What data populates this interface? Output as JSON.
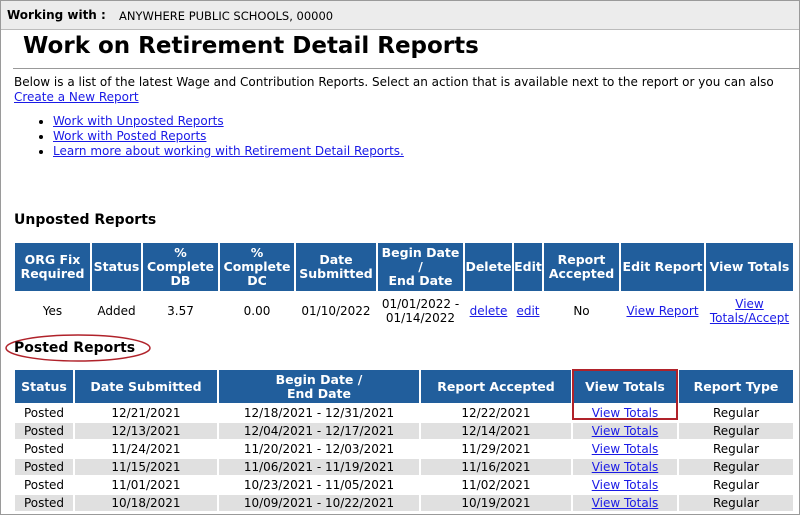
{
  "header": {
    "label": "Working with :",
    "org": "ANYWHERE PUBLIC SCHOOLS, 00000"
  },
  "title": "Work on Retirement Detail Reports",
  "intro": {
    "text": "Below is a list of the latest Wage and Contribution Reports. Select an action that is available next to the report or you can also",
    "link": "Create a New Report"
  },
  "links": [
    "Work with Unposted Reports",
    "Work with Posted Reports",
    "Learn more about working with Retirement Detail Reports."
  ],
  "unposted": {
    "heading": "Unposted Reports",
    "columns": [
      "ORG Fix\nRequired",
      "Status",
      "%\nComplete\nDB",
      "%\nComplete\nDC",
      "Date\nSubmitted",
      "Begin Date\n/\nEnd Date",
      "Delete",
      "Edit",
      "Report\nAccepted",
      "Edit Report",
      "View Totals"
    ],
    "rows": [
      [
        "Yes",
        "Added",
        "3.57",
        "0.00",
        "01/10/2022",
        "01/01/2022 -\n01/14/2022",
        "delete",
        "edit",
        "No",
        "View Report",
        "View\nTotals/Accept"
      ]
    ]
  },
  "posted": {
    "heading": "Posted Reports",
    "columns": [
      "Status",
      "Date Submitted",
      "Begin Date /\nEnd Date",
      "Report Accepted",
      "View Totals",
      "Report Type"
    ],
    "rows": [
      [
        "Posted",
        "12/21/2021",
        "12/18/2021 - 12/31/2021",
        "12/22/2021",
        "View Totals",
        "Regular"
      ],
      [
        "Posted",
        "12/13/2021",
        "12/04/2021 - 12/17/2021",
        "12/14/2021",
        "View Totals",
        "Regular"
      ],
      [
        "Posted",
        "11/24/2021",
        "11/20/2021 - 12/03/2021",
        "11/29/2021",
        "View Totals",
        "Regular"
      ],
      [
        "Posted",
        "11/15/2021",
        "11/06/2021 - 11/19/2021",
        "11/16/2021",
        "View Totals",
        "Regular"
      ],
      [
        "Posted",
        "11/01/2021",
        "10/23/2021 - 11/05/2021",
        "11/02/2021",
        "View Totals",
        "Regular"
      ],
      [
        "Posted",
        "10/18/2021",
        "10/09/2021 - 10/22/2021",
        "10/19/2021",
        "View Totals",
        "Regular"
      ]
    ]
  }
}
